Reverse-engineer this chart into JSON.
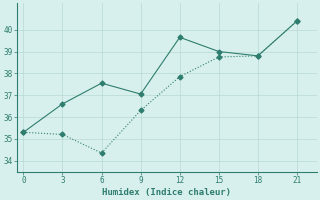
{
  "xlabel": "Humidex (Indice chaleur)",
  "line1_x": [
    0,
    3,
    6,
    9,
    12,
    15,
    18,
    21
  ],
  "line1_y": [
    35.3,
    36.6,
    37.55,
    37.05,
    39.65,
    39.0,
    38.8,
    40.4
  ],
  "line2_x": [
    0,
    3,
    6,
    9,
    12,
    15,
    18,
    21
  ],
  "line2_y": [
    35.3,
    35.2,
    34.35,
    36.3,
    37.85,
    38.75,
    38.8,
    40.4
  ],
  "line_color": "#2e7d6e",
  "bg_color": "#d8f0ed",
  "grid_color": "#b8d8d4",
  "spine_color": "#2e7d6e",
  "xlim": [
    -0.5,
    22.5
  ],
  "ylim": [
    33.5,
    41.2
  ],
  "xticks": [
    0,
    3,
    6,
    9,
    12,
    15,
    18,
    21
  ],
  "yticks": [
    34,
    35,
    36,
    37,
    38,
    39,
    40
  ],
  "marker": "D",
  "markersize": 2.5,
  "linewidth": 0.8
}
